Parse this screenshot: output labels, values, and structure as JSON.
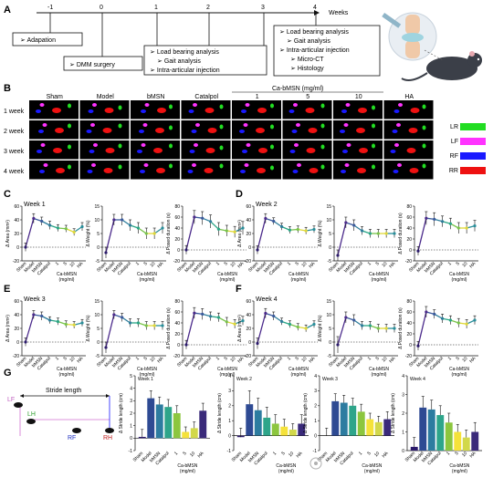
{
  "panelA": {
    "letter": "A",
    "timeline_labels": [
      "-1",
      "0",
      "1",
      "2",
      "3",
      "4"
    ],
    "timeline_unit": "Weeks",
    "box_m1": [
      "Adapation"
    ],
    "box_0": [
      "DMM surgery"
    ],
    "box_1": [
      "Load bearing analysis",
      "Gait analysis",
      "Intra-articular injection"
    ],
    "box_4": [
      "Load bearing analysis",
      "Gait analysis",
      "Intra-articular injection",
      "Micro-CT",
      "Histology"
    ]
  },
  "panelB": {
    "letter": "B",
    "columns": [
      "Sham",
      "Model",
      "bMSN",
      "Catalpol",
      "1",
      "5",
      "10",
      "HA"
    ],
    "group_header": "Ca-bMSN (mg/ml)",
    "rows": [
      "1 week",
      "2 week",
      "3 week",
      "4 week"
    ],
    "legend": [
      {
        "label": "LR",
        "color": "#22dd22"
      },
      {
        "label": "LF",
        "color": "#ff33ff"
      },
      {
        "label": "RF",
        "color": "#1a1aff"
      },
      {
        "label": "RR",
        "color": "#ee1111"
      }
    ]
  },
  "panels_CF": [
    {
      "letter": "C",
      "title": "Week 1"
    },
    {
      "letter": "D",
      "title": "Week 2"
    },
    {
      "letter": "E",
      "title": "Week 3"
    },
    {
      "letter": "F",
      "title": "Week 4"
    }
  ],
  "cf_ylabels": [
    "Δ Area (mm²)",
    "Δ Weight (%)",
    "Δ Posed duration (s)"
  ],
  "cf_xlabels": [
    "Sham",
    "Model",
    "bMSN",
    "Catalpol",
    "1",
    "5",
    "10",
    "HA"
  ],
  "cf_xgroup": "Ca-bMSN",
  "cf_xunit": "(mg/ml)",
  "panelG": {
    "letter": "G",
    "paw_labels": [
      "LF",
      "LH",
      "RF",
      "RH"
    ],
    "stride_label": "Stride length",
    "ylabel": "Δ Stride length (cm)",
    "xlabels": [
      "Sham",
      "Model",
      "bMSN",
      "Catalpol",
      "1",
      "5",
      "10",
      "HA"
    ],
    "xgroup": "Ca-bMSN",
    "xunit": "(mg/ml)",
    "weeks": [
      "Week 1",
      "Week 2",
      "Week 3",
      "Week 4"
    ],
    "bar_colors": [
      "#2b1a6b",
      "#2e4a93",
      "#2d7ca0",
      "#2ea58a",
      "#8cc63e",
      "#f5e23a",
      "#d2d84a",
      "#3a2a7a"
    ]
  },
  "chart_data": [
    {
      "type": "line",
      "title": "Week 1",
      "ylabel": "Δ Area (mm²)",
      "ylim": [
        -20,
        60
      ],
      "yticks": [
        -20,
        0,
        20,
        40,
        60
      ],
      "categories": [
        "Sham",
        "Model",
        "bMSN",
        "Catalpol",
        "1",
        "5",
        "10",
        "HA"
      ],
      "values": [
        0,
        42,
        38,
        32,
        28,
        27,
        22,
        30
      ],
      "errors": [
        6,
        7,
        6,
        6,
        5,
        5,
        5,
        6
      ]
    },
    {
      "type": "line",
      "title": "Week 1",
      "ylabel": "Δ Weight (%)",
      "ylim": [
        -5,
        15
      ],
      "yticks": [
        -5,
        0,
        5,
        10,
        15
      ],
      "categories": [
        "Sham",
        "Model",
        "bMSN",
        "Catalpol",
        "1",
        "5",
        "10",
        "HA"
      ],
      "values": [
        -2,
        10,
        10,
        8,
        7,
        5,
        5,
        7
      ],
      "errors": [
        2,
        2,
        2,
        2,
        2,
        2,
        2,
        2
      ]
    },
    {
      "type": "line",
      "title": "Week 1",
      "ylabel": "Δ Posed duration (s)",
      "ylim": [
        -20,
        80
      ],
      "yticks": [
        -20,
        0,
        20,
        40,
        60,
        80
      ],
      "categories": [
        "Sham",
        "Model",
        "bMSN",
        "Catalpol",
        "1",
        "5",
        "10",
        "HA"
      ],
      "values": [
        0,
        60,
        58,
        52,
        38,
        35,
        33,
        40
      ],
      "errors": [
        8,
        12,
        12,
        12,
        12,
        10,
        10,
        12
      ]
    },
    {
      "type": "line",
      "title": "Week 2",
      "ylabel": "Δ Area (mm²)",
      "ylim": [
        -20,
        60
      ],
      "yticks": [
        -20,
        0,
        20,
        40,
        60
      ],
      "categories": [
        "Sham",
        "Model",
        "bMSN",
        "Catalpol",
        "1",
        "5",
        "10",
        "HA"
      ],
      "values": [
        -4,
        42,
        38,
        30,
        25,
        26,
        24,
        26
      ],
      "errors": [
        6,
        7,
        5,
        5,
        5,
        5,
        5,
        5
      ]
    },
    {
      "type": "line",
      "title": "Week 2",
      "ylabel": "Δ Weight (%)",
      "ylim": [
        -5,
        15
      ],
      "yticks": [
        -5,
        0,
        5,
        10,
        15
      ],
      "categories": [
        "Sham",
        "Model",
        "bMSN",
        "Catalpol",
        "1",
        "5",
        "10",
        "HA"
      ],
      "values": [
        -3,
        9,
        8,
        6,
        5,
        5,
        5,
        5
      ],
      "errors": [
        2,
        2,
        2,
        1.5,
        1.5,
        1.5,
        1.5,
        1.5
      ]
    },
    {
      "type": "line",
      "title": "Week 2",
      "ylabel": "Δ Posed duration (s)",
      "ylim": [
        -20,
        80
      ],
      "yticks": [
        -20,
        0,
        20,
        40,
        60,
        80
      ],
      "categories": [
        "Sham",
        "Model",
        "bMSN",
        "Catalpol",
        "1",
        "5",
        "10",
        "HA"
      ],
      "values": [
        -2,
        58,
        56,
        52,
        48,
        40,
        40,
        44
      ],
      "errors": [
        8,
        12,
        12,
        10,
        10,
        10,
        10,
        10
      ]
    },
    {
      "type": "line",
      "title": "Week 3",
      "ylabel": "Δ Area (mm²)",
      "ylim": [
        -20,
        60
      ],
      "yticks": [
        -20,
        0,
        20,
        40,
        60
      ],
      "categories": [
        "Sham",
        "Model",
        "bMSN",
        "Catalpol",
        "1",
        "5",
        "10",
        "HA"
      ],
      "values": [
        0,
        40,
        38,
        32,
        30,
        26,
        25,
        28
      ],
      "errors": [
        6,
        6,
        6,
        5,
        5,
        5,
        5,
        5
      ]
    },
    {
      "type": "line",
      "title": "Week 3",
      "ylabel": "Δ Weight (%)",
      "ylim": [
        -5,
        15
      ],
      "yticks": [
        -5,
        0,
        5,
        10,
        15
      ],
      "categories": [
        "Sham",
        "Model",
        "bMSN",
        "Catalpol",
        "1",
        "5",
        "10",
        "HA"
      ],
      "values": [
        -2,
        10,
        9,
        7,
        7,
        6,
        6,
        6
      ],
      "errors": [
        2,
        1.5,
        1.5,
        1.5,
        1.5,
        1.5,
        1.5,
        1.5
      ]
    },
    {
      "type": "line",
      "title": "Week 3",
      "ylabel": "Δ Posed duration (s)",
      "ylim": [
        -20,
        80
      ],
      "yticks": [
        -20,
        0,
        20,
        40,
        60,
        80
      ],
      "categories": [
        "Sham",
        "Model",
        "bMSN",
        "Catalpol",
        "1",
        "5",
        "10",
        "HA"
      ],
      "values": [
        0,
        58,
        56,
        52,
        50,
        42,
        38,
        44
      ],
      "errors": [
        8,
        10,
        10,
        8,
        8,
        8,
        8,
        8
      ]
    },
    {
      "type": "line",
      "title": "Week 4",
      "ylabel": "Δ Area (mm²)",
      "ylim": [
        -20,
        60
      ],
      "yticks": [
        -20,
        0,
        20,
        40,
        60
      ],
      "categories": [
        "Sham",
        "Model",
        "bMSN",
        "Catalpol",
        "1",
        "5",
        "10",
        "HA"
      ],
      "values": [
        -2,
        42,
        38,
        30,
        26,
        22,
        20,
        26
      ],
      "errors": [
        8,
        7,
        6,
        5,
        5,
        5,
        5,
        5
      ]
    },
    {
      "type": "line",
      "title": "Week 4",
      "ylabel": "Δ Weight (%)",
      "ylim": [
        -5,
        15
      ],
      "yticks": [
        -5,
        0,
        5,
        10,
        15
      ],
      "categories": [
        "Sham",
        "Model",
        "bMSN",
        "Catalpol",
        "1",
        "5",
        "10",
        "HA"
      ],
      "values": [
        -1,
        9,
        8,
        6,
        6,
        5,
        5,
        5
      ],
      "errors": [
        3,
        2,
        2,
        1.5,
        1.5,
        1.5,
        1.5,
        1.5
      ]
    },
    {
      "type": "line",
      "title": "Week 4",
      "ylabel": "Δ Posed duration (s)",
      "ylim": [
        -20,
        80
      ],
      "yticks": [
        -20,
        0,
        20,
        40,
        60,
        80
      ],
      "categories": [
        "Sham",
        "Model",
        "bMSN",
        "Catalpol",
        "1",
        "5",
        "10",
        "HA"
      ],
      "values": [
        -2,
        60,
        56,
        48,
        45,
        40,
        38,
        45
      ],
      "errors": [
        8,
        10,
        8,
        8,
        8,
        8,
        8,
        8
      ]
    },
    {
      "type": "bar",
      "title": "Week 1",
      "ylabel": "Δ Stride length (cm)",
      "ylim": [
        -1,
        5
      ],
      "yticks": [
        -1,
        0,
        1,
        2,
        3,
        4,
        5
      ],
      "categories": [
        "Sham",
        "Model",
        "bMSN",
        "Catalpol",
        "1",
        "5",
        "10",
        "HA"
      ],
      "values": [
        0.1,
        3.2,
        2.7,
        2.5,
        2.0,
        0.5,
        0.8,
        2.2
      ],
      "errors": [
        0.6,
        0.6,
        0.6,
        0.6,
        0.6,
        0.4,
        0.5,
        0.6
      ]
    },
    {
      "type": "bar",
      "title": "Week 2",
      "ylabel": "Δ Stride length (cm)",
      "ylim": [
        -1,
        4
      ],
      "yticks": [
        -1,
        0,
        1,
        2,
        3,
        4
      ],
      "categories": [
        "Sham",
        "Model",
        "bMSN",
        "Catalpol",
        "1",
        "5",
        "10",
        "HA"
      ],
      "values": [
        -0.1,
        2.1,
        1.7,
        1.2,
        0.8,
        0.6,
        0.4,
        0.8
      ],
      "errors": [
        0.6,
        0.9,
        0.8,
        0.7,
        0.6,
        0.5,
        0.4,
        0.6
      ]
    },
    {
      "type": "bar",
      "title": "Week 3",
      "ylabel": "Δ Stride length (cm)",
      "ylim": [
        -1,
        4
      ],
      "yticks": [
        -1,
        0,
        1,
        2,
        3,
        4
      ],
      "categories": [
        "Sham",
        "Model",
        "bMSN",
        "Catalpol",
        "1",
        "5",
        "10",
        "HA"
      ],
      "values": [
        0.0,
        2.3,
        2.2,
        2.0,
        1.6,
        1.1,
        0.9,
        1.1
      ],
      "errors": [
        0.5,
        0.5,
        0.5,
        0.5,
        0.5,
        0.4,
        0.4,
        0.5
      ]
    },
    {
      "type": "bar",
      "title": "Week 4",
      "ylabel": "Δ Stride length (cm)",
      "ylim": [
        0,
        4
      ],
      "yticks": [
        0,
        1,
        2,
        3,
        4
      ],
      "categories": [
        "Sham",
        "Model",
        "bMSN",
        "Catalpol",
        "1",
        "5",
        "10",
        "HA"
      ],
      "values": [
        0.2,
        2.3,
        2.2,
        1.9,
        1.5,
        1.0,
        0.7,
        1.0
      ],
      "errors": [
        0.5,
        0.6,
        0.5,
        0.5,
        0.5,
        0.4,
        0.4,
        0.5
      ]
    }
  ]
}
